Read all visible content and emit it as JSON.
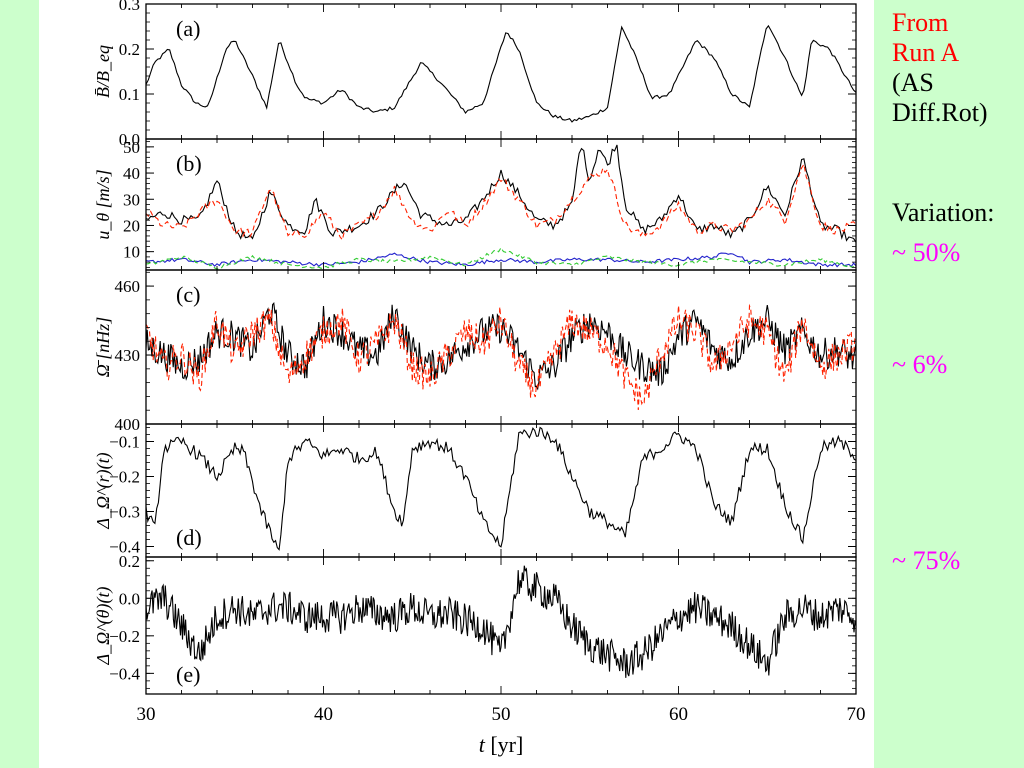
{
  "sidebar": {
    "source_lines": [
      "From",
      "Run A"
    ],
    "method_lines": [
      "(AS",
      "Diff.Rot)"
    ],
    "variation_label": "Variation:",
    "variations": {
      "a": "~ 50%",
      "c": "~ 6%",
      "d": "~ 75%"
    }
  },
  "colors": {
    "background": "#ccffcc",
    "plot_background": "#ffffff",
    "source_text": "#ff0000",
    "variation_text": "#ff00ff",
    "black_series": "#000000",
    "red_dashed_series": "#ff2200",
    "green_dashed_series": "#33cc33",
    "blue_series": "#2222cc"
  },
  "chart_data": {
    "type": "line",
    "shared_x": {
      "label_symbol": "t",
      "label_unit": "[yr]",
      "xlim": [
        30,
        70
      ],
      "ticks": [
        30,
        40,
        50,
        60,
        70
      ]
    },
    "panels": [
      {
        "id": "a",
        "tag": "(a)",
        "ylabel": "B̄/B_eq",
        "ylim": [
          0.0,
          0.3
        ],
        "yticks": [
          0.0,
          0.1,
          0.2,
          0.3
        ],
        "ytick_labels": [
          "0.0",
          "0.1",
          "0.2",
          "0.3"
        ],
        "series": [
          {
            "color": "black",
            "style": "solid",
            "x": [
              30,
              30.5,
              31.3,
              32,
              32.8,
              33.5,
              34.5,
              35,
              36,
              36.8,
              37.5,
              38.5,
              39,
              40,
              41,
              42,
              43,
              44,
              45.5,
              46.5,
              48,
              49,
              50.3,
              51,
              52,
              53,
              54,
              55,
              56,
              56.8,
              57.5,
              58.5,
              59.5,
              61,
              62,
              63,
              64,
              65,
              66,
              67,
              67.5,
              68.5,
              70
            ],
            "y": [
              0.12,
              0.17,
              0.2,
              0.12,
              0.08,
              0.07,
              0.2,
              0.22,
              0.14,
              0.07,
              0.22,
              0.12,
              0.09,
              0.08,
              0.11,
              0.07,
              0.06,
              0.07,
              0.17,
              0.13,
              0.06,
              0.08,
              0.24,
              0.2,
              0.08,
              0.05,
              0.04,
              0.05,
              0.07,
              0.25,
              0.19,
              0.09,
              0.1,
              0.22,
              0.18,
              0.1,
              0.07,
              0.26,
              0.18,
              0.09,
              0.22,
              0.2,
              0.1
            ]
          }
        ]
      },
      {
        "id": "b",
        "tag": "(b)",
        "ylabel": "u_θ [m/s]",
        "ylim": [
          3,
          53
        ],
        "yticks": [
          10,
          20,
          30,
          40,
          50
        ],
        "ytick_labels": [
          "10",
          "20",
          "30",
          "40",
          "50"
        ],
        "series": [
          {
            "color": "black",
            "style": "solid",
            "x": [
              30,
              31,
              32,
              33,
              34,
              35,
              36,
              37,
              38,
              39,
              39.5,
              40.5,
              42,
              43,
              44.5,
              45.5,
              47,
              48,
              49,
              50,
              51,
              52,
              53,
              54,
              54.5,
              55,
              55.5,
              56,
              56.5,
              57,
              58,
              59,
              60,
              61,
              62,
              63,
              64,
              65,
              66,
              67,
              68,
              69,
              70
            ],
            "y": [
              22,
              25,
              22,
              22,
              37,
              18,
              14,
              33,
              20,
              18,
              30,
              17,
              20,
              25,
              37,
              24,
              20,
              22,
              30,
              40,
              32,
              22,
              20,
              28,
              52,
              37,
              50,
              43,
              52,
              28,
              18,
              22,
              32,
              18,
              20,
              16,
              22,
              35,
              24,
              46,
              20,
              18,
              13
            ]
          },
          {
            "color": "red",
            "style": "dashed",
            "x": [
              30,
              31,
              32,
              33,
              34,
              35,
              36,
              37,
              38,
              39,
              40,
              41,
              42,
              43,
              44,
              45,
              46,
              47,
              48,
              49,
              50,
              51,
              52,
              53,
              54,
              55,
              56,
              57,
              58,
              59,
              60,
              61,
              62,
              63,
              64,
              65,
              66,
              67,
              68,
              69,
              70
            ],
            "y": [
              25,
              20,
              19,
              25,
              30,
              18,
              17,
              35,
              16,
              17,
              25,
              16,
              20,
              24,
              34,
              22,
              18,
              26,
              20,
              28,
              38,
              30,
              20,
              22,
              30,
              38,
              42,
              20,
              16,
              20,
              28,
              18,
              20,
              18,
              22,
              30,
              22,
              44,
              20,
              18,
              20
            ]
          },
          {
            "color": "blue",
            "style": "solid",
            "x": [
              30,
              32,
              34,
              36,
              38,
              40,
              42,
              44,
              46,
              48,
              50,
              52,
              54,
              56,
              58,
              60,
              62,
              63,
              64,
              66,
              68,
              70
            ],
            "y": [
              6,
              7,
              5,
              7,
              6,
              5,
              6,
              9,
              6,
              5,
              7,
              6,
              7,
              7,
              6,
              7,
              8,
              10,
              6,
              7,
              5,
              5
            ]
          },
          {
            "color": "green",
            "style": "dashed",
            "x": [
              30,
              32,
              34,
              36,
              38,
              40,
              42,
              44,
              46,
              48,
              50,
              52,
              54,
              56,
              58,
              60,
              62,
              64,
              66,
              68,
              70
            ],
            "y": [
              5,
              8,
              4,
              8,
              5,
              4,
              7,
              6,
              8,
              5,
              11,
              6,
              5,
              8,
              6,
              5,
              7,
              6,
              5,
              7,
              4
            ]
          }
        ]
      },
      {
        "id": "c",
        "tag": "(c)",
        "ylabel": "Ω̄ [nHz]",
        "ylim": [
          400,
          467
        ],
        "yticks": [
          400,
          430,
          460
        ],
        "ytick_labels": [
          "400",
          "430",
          "460"
        ],
        "series": [
          {
            "color": "black",
            "style": "solid",
            "x": [
              30,
              31,
              32,
              33,
              34,
              35,
              36,
              37,
              38,
              39,
              40,
              41,
              42,
              43,
              44,
              45,
              46,
              47,
              48,
              49,
              50,
              51,
              52,
              53,
              54,
              55,
              56,
              57,
              58,
              59,
              60,
              61,
              62,
              63,
              64,
              65,
              66,
              67,
              68,
              69,
              70
            ],
            "y": [
              435,
              430,
              425,
              428,
              440,
              438,
              432,
              450,
              430,
              425,
              445,
              440,
              432,
              430,
              448,
              432,
              425,
              428,
              435,
              440,
              442,
              432,
              420,
              425,
              438,
              445,
              440,
              430,
              425,
              422,
              438,
              445,
              432,
              428,
              440,
              445,
              432,
              440,
              430,
              432,
              428
            ]
          },
          {
            "color": "red",
            "style": "dashed",
            "x": [
              30,
              31,
              32,
              33,
              34,
              35,
              36,
              37,
              38,
              39,
              40,
              41,
              42,
              43,
              44,
              45,
              46,
              47,
              48,
              49,
              50,
              51,
              52,
              53,
              54,
              55,
              56,
              57,
              58,
              59,
              60,
              61,
              62,
              63,
              64,
              65,
              66,
              67,
              68,
              69,
              70
            ],
            "y": [
              440,
              425,
              430,
              420,
              445,
              430,
              440,
              445,
              420,
              430,
              440,
              445,
              428,
              435,
              445,
              425,
              420,
              430,
              440,
              435,
              445,
              425,
              415,
              430,
              445,
              440,
              435,
              420,
              410,
              430,
              445,
              440,
              425,
              435,
              445,
              440,
              420,
              445,
              425,
              430,
              435
            ]
          }
        ]
      },
      {
        "id": "d",
        "tag": "(d)",
        "ylabel": "Δ_Ω^(r)(t)",
        "ylim": [
          -0.43,
          -0.05
        ],
        "yticks": [
          -0.4,
          -0.3,
          -0.2,
          -0.1
        ],
        "ytick_labels": [
          "−0.4",
          "−0.3",
          "−0.2",
          "−0.1"
        ],
        "series": [
          {
            "color": "black",
            "style": "solid",
            "x": [
              30,
              30.5,
              31,
              32,
              33,
              34,
              35,
              35.5,
              36.5,
              37.5,
              38,
              39,
              40,
              41,
              42,
              43,
              44,
              44.5,
              45,
              46,
              47,
              48,
              49,
              50,
              51,
              52,
              53,
              54,
              55,
              56,
              57,
              58,
              59,
              60,
              61,
              62,
              63,
              64,
              65,
              66,
              67,
              68,
              69,
              70
            ],
            "y": [
              -0.3,
              -0.35,
              -0.12,
              -0.1,
              -0.14,
              -0.2,
              -0.12,
              -0.13,
              -0.3,
              -0.42,
              -0.15,
              -0.1,
              -0.14,
              -0.12,
              -0.15,
              -0.13,
              -0.3,
              -0.33,
              -0.12,
              -0.1,
              -0.12,
              -0.2,
              -0.33,
              -0.4,
              -0.08,
              -0.07,
              -0.09,
              -0.2,
              -0.3,
              -0.33,
              -0.37,
              -0.15,
              -0.12,
              -0.08,
              -0.12,
              -0.28,
              -0.33,
              -0.12,
              -0.12,
              -0.28,
              -0.38,
              -0.12,
              -0.1,
              -0.14
            ]
          }
        ]
      },
      {
        "id": "e",
        "tag": "(e)",
        "ylabel": "Δ_Ω^(θ)(t)",
        "ylim": [
          -0.51,
          0.22
        ],
        "yticks": [
          -0.4,
          -0.2,
          0.0,
          0.2
        ],
        "ytick_labels": [
          "−0.4",
          "−0.2",
          "0.0",
          "0.2"
        ],
        "series": [
          {
            "color": "black",
            "style": "solid",
            "x": [
              30,
              31,
              32,
              33,
              34,
              35,
              36,
              37,
              38,
              39,
              40,
              41,
              42,
              43,
              44,
              45,
              46,
              47,
              48,
              49,
              50,
              51,
              52,
              53,
              54,
              55,
              56,
              57,
              58,
              59,
              60,
              61,
              62,
              63,
              64,
              65,
              66,
              67,
              68,
              69,
              70
            ],
            "y": [
              -0.05,
              0.0,
              -0.15,
              -0.3,
              -0.1,
              -0.05,
              -0.1,
              -0.05,
              -0.05,
              -0.1,
              -0.1,
              -0.1,
              -0.05,
              -0.08,
              -0.1,
              -0.05,
              -0.1,
              -0.08,
              -0.12,
              -0.15,
              -0.3,
              0.1,
              0.05,
              0.0,
              -0.15,
              -0.25,
              -0.3,
              -0.35,
              -0.3,
              -0.2,
              -0.1,
              -0.05,
              -0.1,
              -0.15,
              -0.25,
              -0.35,
              -0.1,
              -0.05,
              -0.1,
              -0.05,
              -0.1
            ]
          }
        ]
      }
    ]
  }
}
